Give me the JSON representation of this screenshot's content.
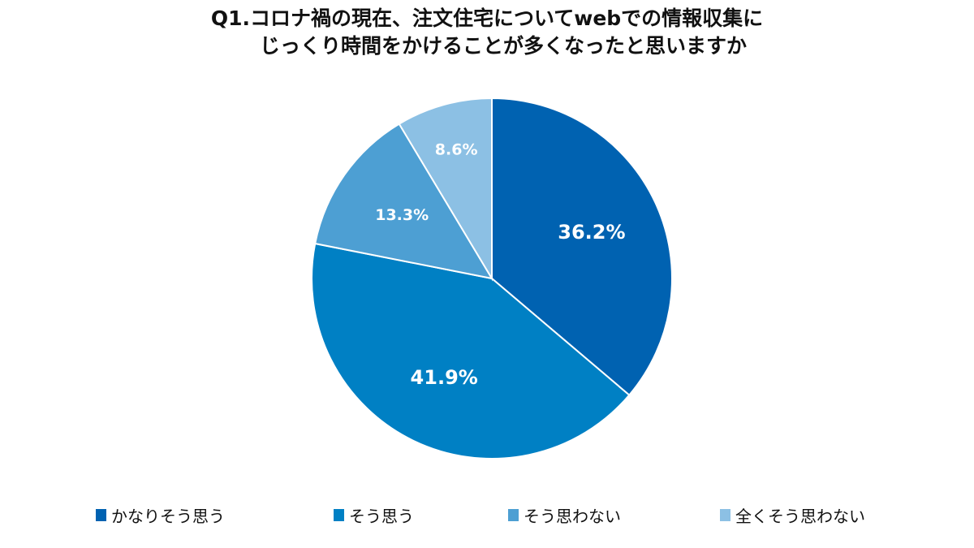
{
  "chart_data": {
    "type": "pie",
    "title_lines": [
      "Q1.コロナ禍の現在、注文住宅についてwebでの情報収集に",
      "じっくり時間をかけることが多くなったと思いますか"
    ],
    "start": "top",
    "direction": "clockwise",
    "legend_position": "bottom",
    "slices": [
      {
        "name": "かなりそう思う",
        "value": 36.2,
        "label": "36.2%",
        "color": "#0062B1"
      },
      {
        "name": "そう思う",
        "value": 41.9,
        "label": "41.9%",
        "color": "#0080C4"
      },
      {
        "name": "そう思わない",
        "value": 13.3,
        "label": "13.3%",
        "color": "#4D9FD3"
      },
      {
        "name": "全くそう思わない",
        "value": 8.6,
        "label": "8.6%",
        "color": "#8CC0E4"
      }
    ]
  }
}
